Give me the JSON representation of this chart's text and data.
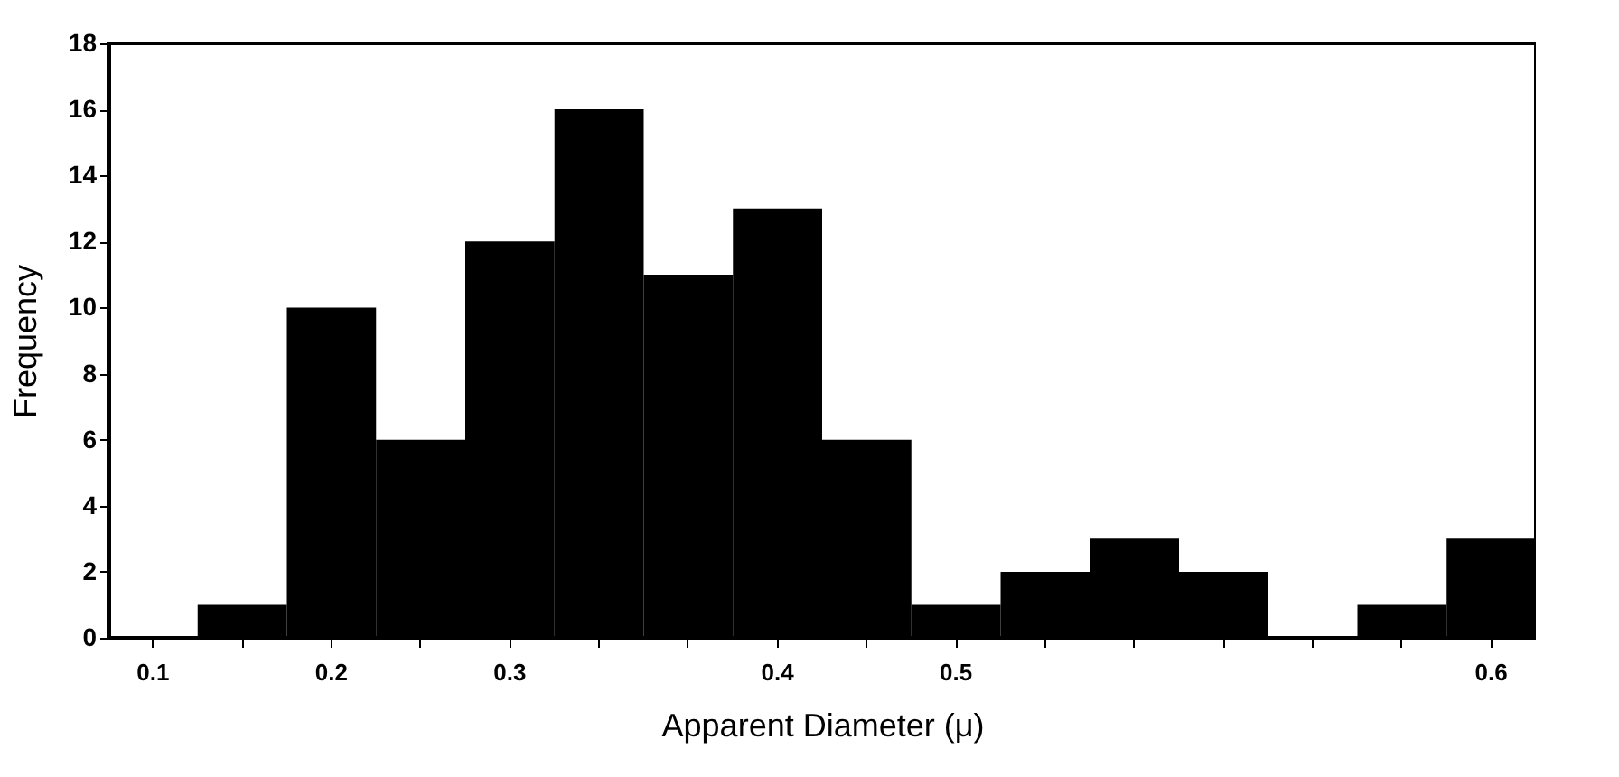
{
  "chart_data": {
    "type": "bar",
    "xlabel": "Apparent Diameter (μ)",
    "ylabel": "Frequency",
    "categories": [
      "0.1",
      null,
      "0.2",
      null,
      "0.3",
      null,
      null,
      "0.4",
      null,
      "0.5",
      null,
      null,
      null,
      null,
      null,
      "0.6"
    ],
    "values": [
      0,
      1,
      10,
      6,
      12,
      16,
      11,
      13,
      6,
      1,
      2,
      3,
      2,
      0,
      1,
      3
    ],
    "color": "#000000",
    "ylim": [
      0,
      18
    ],
    "yticks": [
      0,
      2,
      4,
      6,
      8,
      10,
      12,
      14,
      16,
      18
    ],
    "grid": false
  }
}
